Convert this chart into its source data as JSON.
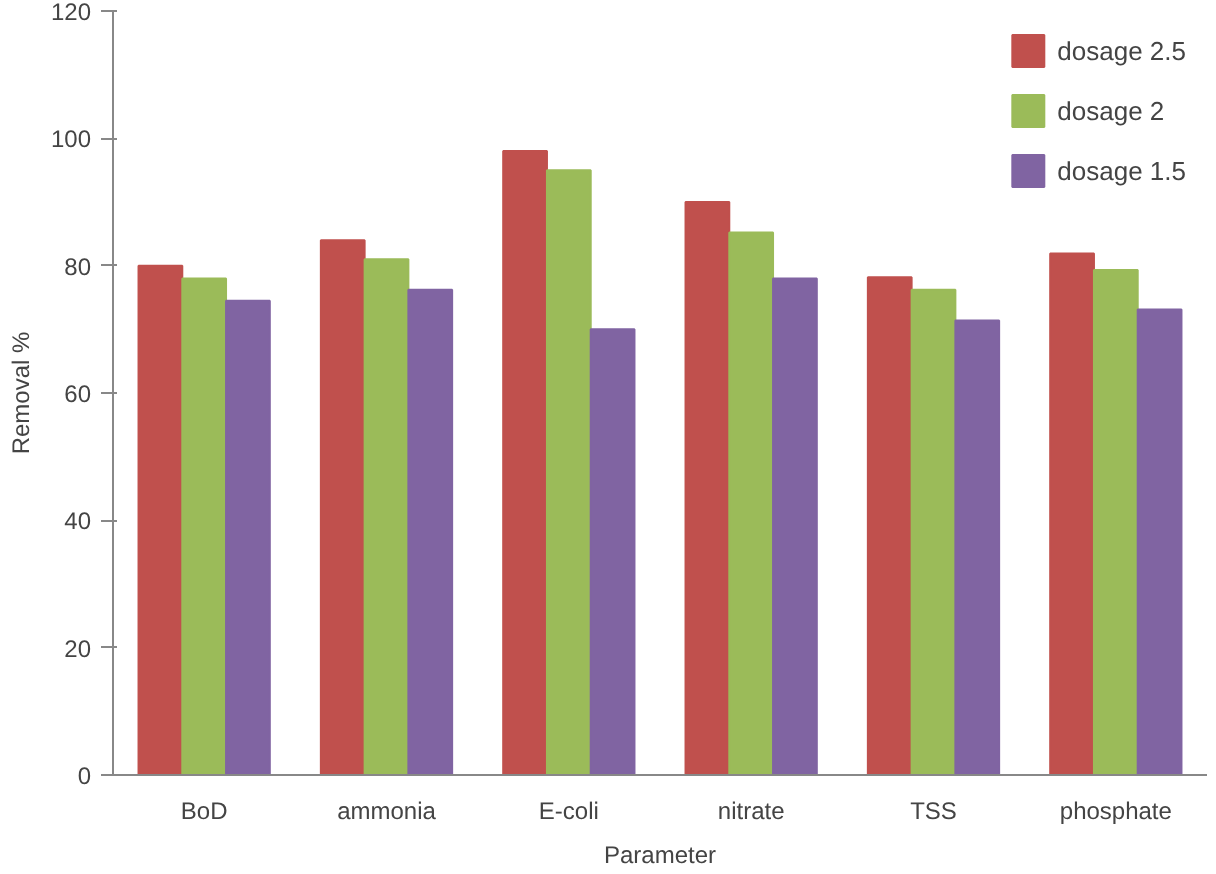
{
  "chart_data": {
    "type": "bar",
    "xlabel": "Parameter",
    "ylabel": "Removal %",
    "categories": [
      "BoD",
      "ammonia",
      "E-coli",
      "nitrate",
      "TSS",
      "phosphate"
    ],
    "series": [
      {
        "name": "dosage 2.5",
        "color": "#c0504d",
        "values": [
          80,
          84,
          98,
          90,
          78.2,
          81.9
        ]
      },
      {
        "name": "dosage 2",
        "color": "#9bbb59",
        "values": [
          78,
          81,
          95,
          85.2,
          76.2,
          79.3
        ]
      },
      {
        "name": "dosage 1.5",
        "color": "#8064a2",
        "values": [
          74.5,
          76.2,
          70,
          78,
          71.4,
          73.1
        ]
      }
    ],
    "ylim": [
      0,
      120
    ],
    "yticks": [
      0,
      20,
      40,
      60,
      80,
      100,
      120
    ],
    "grid": false,
    "legend": "top right"
  }
}
